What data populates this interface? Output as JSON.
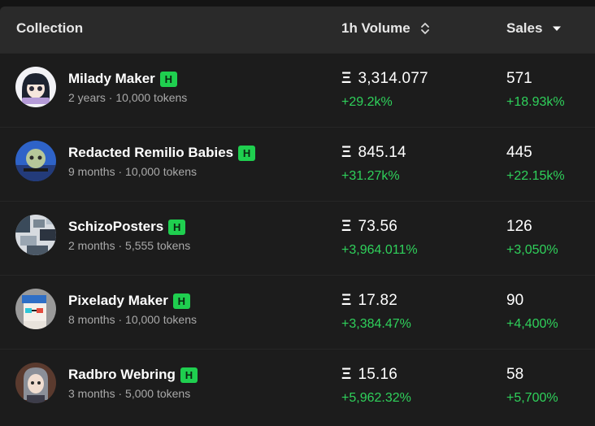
{
  "header": {
    "collection": "Collection",
    "volume": "1h Volume",
    "sales": "Sales"
  },
  "currency_symbol": "Ξ",
  "badge_label": "H",
  "colors": {
    "positive": "#2fd15b",
    "badge": "#1fcf4f"
  },
  "rows": [
    {
      "name": "Milady Maker",
      "meta": "2 years · 10,000 tokens",
      "volume": "3,314.077",
      "volume_change": "+29.2k%",
      "sales": "571",
      "sales_change": "+18.93k%"
    },
    {
      "name": "Redacted Remilio Babies",
      "meta": "9 months · 10,000 tokens",
      "volume": "845.14",
      "volume_change": "+31.27k%",
      "sales": "445",
      "sales_change": "+22.15k%"
    },
    {
      "name": "SchizoPosters",
      "meta": "2 months · 5,555 tokens",
      "volume": "73.56",
      "volume_change": "+3,964.011%",
      "sales": "126",
      "sales_change": "+3,050%"
    },
    {
      "name": "Pixelady Maker",
      "meta": "8 months · 10,000 tokens",
      "volume": "17.82",
      "volume_change": "+3,384.47%",
      "sales": "90",
      "sales_change": "+4,400%"
    },
    {
      "name": "Radbro Webring",
      "meta": "3 months · 5,000 tokens",
      "volume": "15.16",
      "volume_change": "+5,962.32%",
      "sales": "58",
      "sales_change": "+5,700%"
    }
  ]
}
